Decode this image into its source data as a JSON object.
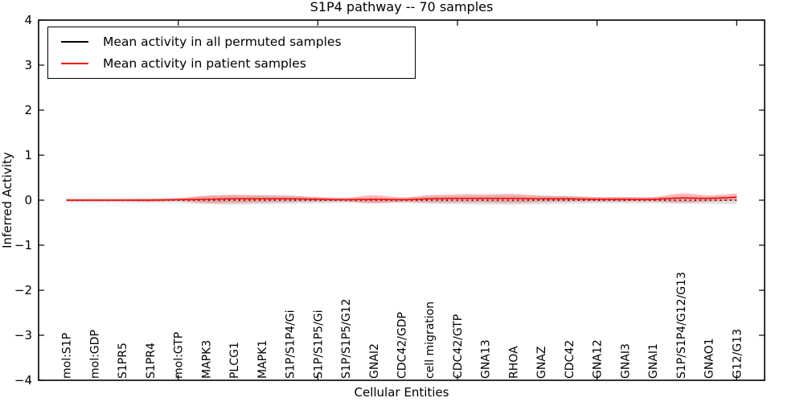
{
  "title": "S1P4 pathway -- 70 samples",
  "chart_data": {
    "type": "line",
    "title": "S1P4 pathway -- 70 samples",
    "xlabel": "Cellular Entities",
    "ylabel": "Inferred Activity",
    "ylim": [
      -4,
      4
    ],
    "yticks": [
      4,
      3,
      2,
      1,
      0,
      -1,
      -2,
      -3,
      -4
    ],
    "xlim": [
      0,
      26
    ],
    "xticks_numeric": [
      0,
      5,
      10,
      15,
      20,
      25
    ],
    "grid": false,
    "legend_position": "upper left",
    "zero_reference_line": 0,
    "categories": [
      "mol:S1P",
      "mol:GDP",
      "S1PR5",
      "S1PR4",
      "mol:GTP",
      "MAPK3",
      "PLCG1",
      "MAPK1",
      "S1P/S1P4/Gi",
      "S1P/S1P5/Gi",
      "S1P/S1P5/G12",
      "GNAI2",
      "CDC42/GDP",
      "cell migration",
      "CDC42/GTP",
      "GNA13",
      "RHOA",
      "GNAZ",
      "CDC42",
      "GNA12",
      "GNAI3",
      "GNAI1",
      "S1P/S1P4/G12/G13",
      "GNAO1",
      "G12/G13"
    ],
    "series": [
      {
        "name": "Mean activity in all permuted samples",
        "color": "#000000",
        "plot_style": "dotted",
        "values": [
          0,
          0,
          0,
          0,
          0,
          0,
          0,
          0,
          0,
          0,
          0,
          0,
          0,
          0,
          0,
          0,
          0,
          0,
          0,
          0,
          0,
          0,
          0,
          0,
          0
        ],
        "std": [
          0.05,
          0.05,
          0.05,
          0.05,
          0.06,
          0.09,
          0.1,
          0.09,
          0.08,
          0.07,
          0.06,
          0.06,
          0.06,
          0.08,
          0.09,
          0.1,
          0.1,
          0.09,
          0.08,
          0.07,
          0.07,
          0.07,
          0.08,
          0.08,
          0.09
        ],
        "band_color": "#aaaaaa"
      },
      {
        "name": "Mean activity in patient samples",
        "color": "#ff0000",
        "plot_style": "solid",
        "values": [
          0,
          0,
          0,
          0,
          0.01,
          0.02,
          0.03,
          0.03,
          0.03,
          0.02,
          0.01,
          0.02,
          0.01,
          0.03,
          0.04,
          0.04,
          0.04,
          0.03,
          0.03,
          0.02,
          0.02,
          0.02,
          0.05,
          0.04,
          0.07
        ],
        "std": [
          0.02,
          0.02,
          0.02,
          0.03,
          0.03,
          0.08,
          0.09,
          0.08,
          0.07,
          0.05,
          0.04,
          0.09,
          0.05,
          0.08,
          0.09,
          0.09,
          0.1,
          0.07,
          0.06,
          0.05,
          0.05,
          0.05,
          0.1,
          0.07,
          0.08
        ],
        "band_color": "#ff0000"
      }
    ]
  }
}
